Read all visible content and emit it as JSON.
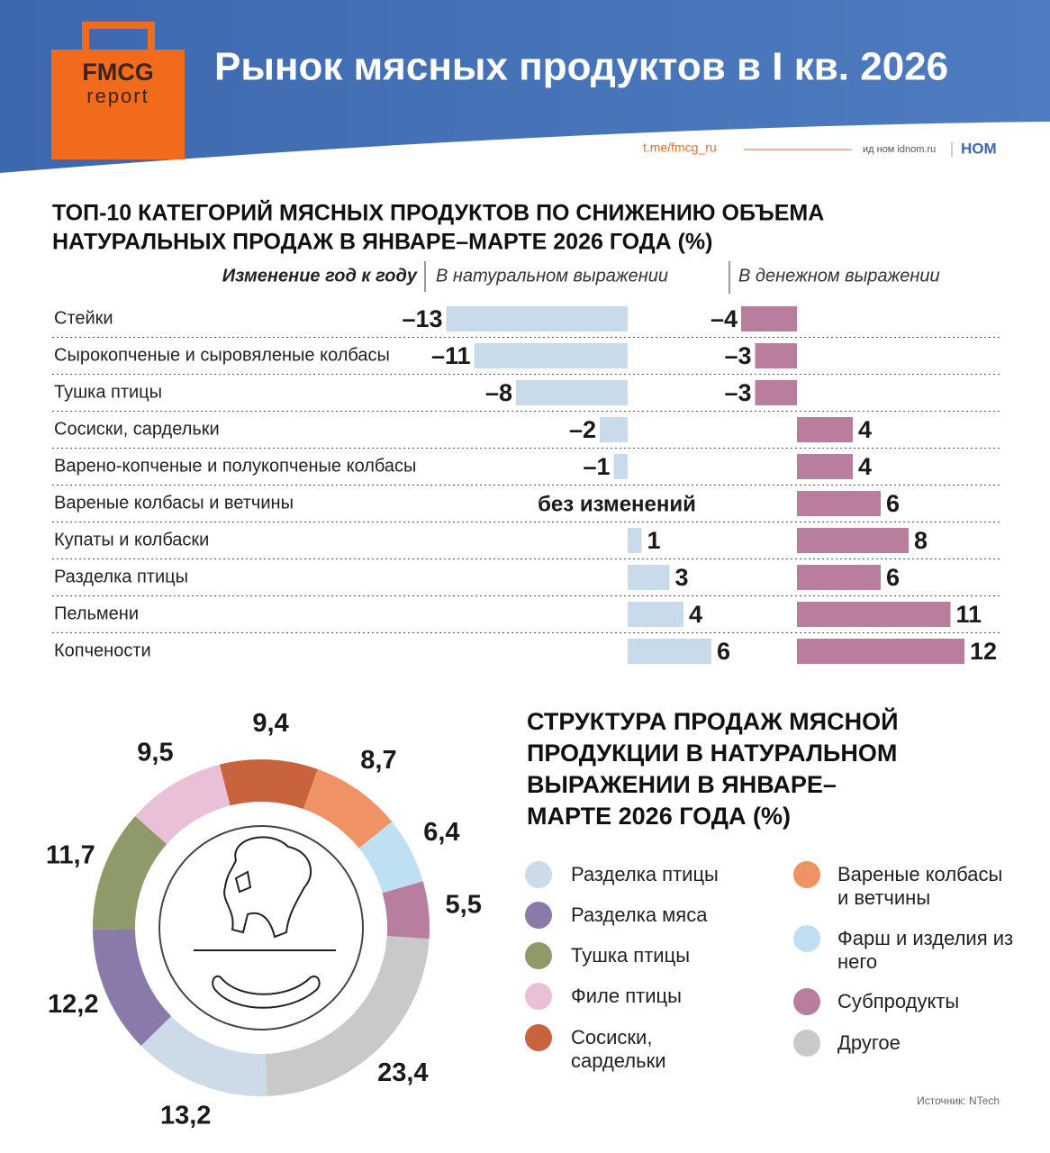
{
  "header": {
    "logo_top": "FMCG",
    "logo_bottom": "report",
    "title": "Рынок мясных продуктов в I кв. 2026",
    "link": "t.me/fmcg_ru",
    "publisher": "ид ном idnom.ru",
    "brand": "НОМ"
  },
  "chart_data": [
    {
      "type": "diverging-bar",
      "title": [
        "ТОП-10 КАТЕГОРИЙ МЯСНЫХ ПРОДУКТОВ ПО СНИЖЕНИЮ ОБЪЕМА",
        "НАТУРАЛЬНЫХ ПРОДАЖ В ЯНВАРЕ–МАРТЕ 2026 ГОДА (%)"
      ],
      "axis_label": "Изменение год к году",
      "categories": [
        "Стейки",
        "Сырокопченые и сыровяленые колбасы",
        "Тушка птицы",
        "Сосиски, сардельки",
        "Варено-копченые и полукопченые колбасы",
        "Вареные колбасы и ветчины",
        "Купаты и колбаски",
        "Разделка птицы",
        "Пельмени",
        "Копчености"
      ],
      "series": [
        {
          "name": "В натуральном выражении",
          "color": "#c9dbea",
          "values": [
            -13,
            -11,
            -8,
            -2,
            -1,
            0,
            1,
            3,
            4,
            6
          ],
          "value_labels": [
            "–13",
            "–11",
            "–8",
            "–2",
            "–1",
            "без изменений",
            "1",
            "3",
            "4",
            "6"
          ]
        },
        {
          "name": "В денежном выражении",
          "color": "#b97e9d",
          "values": [
            -4,
            -3,
            -3,
            4,
            4,
            6,
            8,
            6,
            11,
            12
          ],
          "value_labels": [
            "–4",
            "–3",
            "–3",
            "4",
            "4",
            "6",
            "8",
            "6",
            "11",
            "12"
          ]
        }
      ]
    },
    {
      "type": "donut",
      "title": [
        "СТРУКТУРА ПРОДАЖ МЯСНОЙ",
        "ПРОДУКЦИИ В НАТУРАЛЬНОМ",
        "ВЫРАЖЕНИИ В ЯНВАРЕ–",
        "МАРТЕ 2026 ГОДА (%)"
      ],
      "categories": [
        "Разделка птицы",
        "Разделка мяса",
        "Тушка птицы",
        "Филе птицы",
        "Сосиски, сардельки",
        "Вареные колбасы и ветчины",
        "Фарш и изделия из него",
        "Субпродукты",
        "Другое"
      ],
      "values": [
        13.2,
        12.2,
        11.7,
        9.5,
        9.4,
        8.7,
        6.4,
        5.5,
        23.4
      ],
      "value_labels": [
        "13,2",
        "12,2",
        "11,7",
        "9,5",
        "9,4",
        "8,7",
        "6,4",
        "5,5",
        "23,4"
      ],
      "colors": [
        "#cddbe8",
        "#8a7aa9",
        "#8f9a6a",
        "#e9c0d7",
        "#c9633d",
        "#ef9264",
        "#bfe0f2",
        "#b77e9f",
        "#c9c9c9"
      ]
    }
  ],
  "source": "Источник: NTech"
}
